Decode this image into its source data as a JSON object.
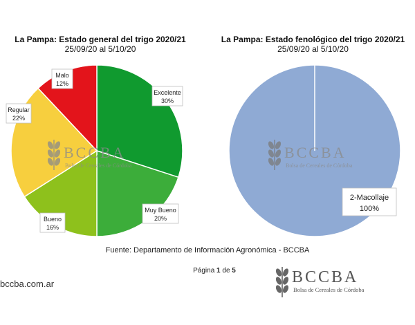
{
  "chart_data": [
    {
      "type": "pie",
      "title": "La Pampa: Estado general del trigo 2020/21",
      "subtitle": "25/09/20 al 5/10/20",
      "categories": [
        "Excelente",
        "Muy Bueno",
        "Bueno",
        "Regular",
        "Malo"
      ],
      "values": [
        30,
        20,
        16,
        22,
        12
      ],
      "value_labels": [
        "30%",
        "20%",
        "16%",
        "22%",
        "12%"
      ],
      "colors": [
        "#109a2f",
        "#3cad3a",
        "#8ec11c",
        "#f7cf3e",
        "#e3141b"
      ],
      "legend": "none"
    },
    {
      "type": "pie",
      "title": "La Pampa: Estado fenológico del trigo 2020/21",
      "subtitle": "25/09/20 al 5/10/20",
      "categories": [
        "2-Macollaje"
      ],
      "values": [
        100
      ],
      "value_labels": [
        "100%"
      ],
      "colors": [
        "#8faad4"
      ],
      "legend": "none"
    }
  ],
  "watermark": {
    "logo_text": "BCCBA",
    "logo_subtext": "Bolsa de Cereales de Córdoba"
  },
  "footer": {
    "source": "Fuente: Departamento de Información Agronómica - BCCBA",
    "page_prefix": "Página ",
    "page_current": "1",
    "page_sep": " de ",
    "page_total": "5",
    "site": "bccba.com.ar",
    "logo_text": "BCCBA",
    "logo_subtext": "Bolsa de Cereales de Córdoba"
  },
  "icons": {
    "wheat": "wheat-icon"
  }
}
